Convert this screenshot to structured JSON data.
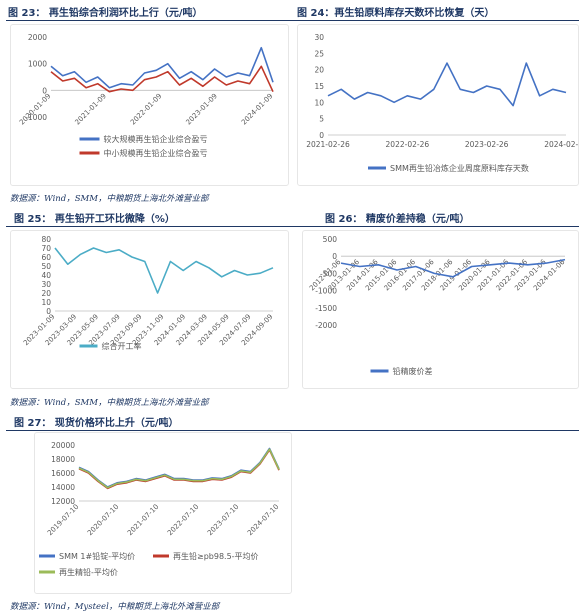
{
  "figures": [
    {
      "title": "图 23： 再生铅综合利润环比上行（元/吨）",
      "chart_data": {
        "type": "line",
        "title": "",
        "yticks": [
          "2000",
          "1000",
          "0",
          "-1000"
        ],
        "ylim": [
          -1000,
          2000
        ],
        "xticks": [
          "2020-01-09",
          "2021-01-09",
          "2022-01-09",
          "2023-01-09",
          "2024-01-09"
        ],
        "x": [
          "2020-01",
          "2020-04",
          "2020-07",
          "2020-10",
          "2021-01",
          "2021-04",
          "2021-07",
          "2021-10",
          "2022-01",
          "2022-04",
          "2022-07",
          "2022-10",
          "2023-01",
          "2023-04",
          "2023-07",
          "2023-10",
          "2024-01",
          "2024-04",
          "2024-07",
          "2024-10"
        ],
        "series": [
          {
            "name": "较大规模再生铅企业综合盈亏",
            "color": "#4472c4",
            "values": [
              900,
              550,
              700,
              300,
              500,
              100,
              250,
              200,
              650,
              750,
              1000,
              450,
              700,
              400,
              800,
              500,
              650,
              550,
              1600,
              300
            ]
          },
          {
            "name": "中小规模再生铅企业综合盈亏",
            "color": "#c0392b",
            "values": [
              700,
              350,
              450,
              100,
              250,
              -50,
              50,
              0,
              400,
              500,
              700,
              200,
              450,
              150,
              500,
              200,
              350,
              250,
              900,
              -50
            ]
          }
        ],
        "legend": "bottom"
      }
    },
    {
      "title": "图 24：再生铅原料库存天数环比恢复（天）",
      "chart_data": {
        "type": "line",
        "yticks": [
          "30",
          "25",
          "20",
          "15",
          "10",
          "5",
          "0"
        ],
        "ylim": [
          0,
          30
        ],
        "xticks": [
          "2021-02-26",
          "2022-02-26",
          "2023-02-26",
          "2024-02-26"
        ],
        "x": [
          "2021-02",
          "2021-05",
          "2021-08",
          "2021-11",
          "2022-02",
          "2022-05",
          "2022-08",
          "2022-11",
          "2023-01",
          "2023-02",
          "2023-04",
          "2023-07",
          "2023-10",
          "2024-01",
          "2024-03",
          "2024-04",
          "2024-06",
          "2024-08",
          "2024-10"
        ],
        "series": [
          {
            "name": "SMM再生铅冶炼企业周度原料库存天数",
            "color": "#4472c4",
            "values": [
              12,
              14,
              11,
              13,
              12,
              10,
              12,
              11,
              14,
              22,
              14,
              13,
              15,
              14,
              9,
              22,
              12,
              14,
              13
            ]
          }
        ],
        "legend": "bottom"
      }
    },
    {
      "title": "图 25： 再生铅开工环比微降（%）",
      "chart_data": {
        "type": "line",
        "yticks": [
          "80",
          "70",
          "60",
          "50",
          "40",
          "30",
          "20",
          "10",
          "0"
        ],
        "ylim": [
          0,
          80
        ],
        "xticks": [
          "2023-01-09",
          "2023-03-09",
          "2023-05-09",
          "2023-07-09",
          "2023-09-09",
          "2023-11-09",
          "2024-01-09",
          "2024-03-09",
          "2024-05-09",
          "2024-07-09",
          "2024-09-09"
        ],
        "x": [
          "2023-01",
          "2023-02",
          "2023-03",
          "2023-05",
          "2023-07",
          "2023-09",
          "2023-11",
          "2024-01",
          "2024-02",
          "2024-03",
          "2024-04",
          "2024-05",
          "2024-06",
          "2024-07",
          "2024-08",
          "2024-09",
          "2024-10",
          "2024-11"
        ],
        "series": [
          {
            "name": "综合开工率",
            "color": "#4bacc6",
            "values": [
              70,
              52,
              63,
              70,
              65,
              68,
              60,
              55,
              20,
              55,
              45,
              55,
              48,
              38,
              45,
              40,
              42,
              48
            ]
          }
        ],
        "legend": "bottom"
      }
    },
    {
      "title": "图 26： 精废价差持稳（元/吨）",
      "chart_data": {
        "type": "line",
        "yticks": [
          "500",
          "0",
          "-500",
          "-1000",
          "-1500",
          "-2000"
        ],
        "ylim": [
          -2000,
          500
        ],
        "xticks": [
          "2012-01-06",
          "2013-01-06",
          "2014-01-06",
          "2015-01-06",
          "2016-01-06",
          "2017-01-06",
          "2018-01-06",
          "2019-01-06",
          "2020-01-06",
          "2021-01-06",
          "2022-01-06",
          "2023-01-06",
          "2024-01-06"
        ],
        "x": [
          "2012",
          "2013",
          "2014",
          "2015",
          "2016",
          "2017",
          "2018",
          "2019",
          "2020",
          "2021",
          "2022",
          "2023",
          "2024"
        ],
        "series": [
          {
            "name": "铅精废价差",
            "color": "#4472c4",
            "values": [
              -200,
              -300,
              -250,
              -400,
              -300,
              -500,
              -600,
              -300,
              -250,
              -200,
              -250,
              -200,
              -100
            ]
          }
        ],
        "legend": "bottom"
      }
    },
    {
      "title": "图 27： 现货价格环比上升（元/吨）",
      "chart_data": {
        "type": "line",
        "yticks": [
          "20000",
          "18000",
          "16000",
          "14000",
          "12000"
        ],
        "ylim": [
          12000,
          20000
        ],
        "xticks": [
          "2019-07-10",
          "2020-07-10",
          "2021-07-10",
          "2022-07-10",
          "2023-07-10",
          "2024-07-10"
        ],
        "x": [
          "2019-07",
          "2019-10",
          "2020-01",
          "2020-04",
          "2020-07",
          "2020-10",
          "2021-01",
          "2021-04",
          "2021-07",
          "2021-10",
          "2022-01",
          "2022-04",
          "2022-07",
          "2022-10",
          "2023-01",
          "2023-04",
          "2023-07",
          "2023-10",
          "2024-01",
          "2024-04",
          "2024-07",
          "2024-10"
        ],
        "series": [
          {
            "name": "SMM 1#铅锭-平均价",
            "color": "#4472c4",
            "values": [
              16800,
              16200,
              15000,
              14000,
              14600,
              14800,
              15200,
              15000,
              15400,
              15800,
              15200,
              15200,
              15000,
              15000,
              15300,
              15200,
              15600,
              16400,
              16200,
              17500,
              19500,
              16600
            ]
          },
          {
            "name": "再生铅≥pb98.5-平均价",
            "color": "#c0392b",
            "values": [
              16600,
              16000,
              14800,
              13800,
              14400,
              14600,
              15000,
              14800,
              15200,
              15600,
              15000,
              15000,
              14800,
              14800,
              15100,
              15000,
              15400,
              16200,
              16000,
              17300,
              19300,
              16400
            ]
          },
          {
            "name": "再生精铅-平均价",
            "color": "#9bbb59",
            "values": [
              16700,
              16100,
              14900,
              13900,
              14500,
              14700,
              15100,
              14900,
              15300,
              15700,
              15100,
              15100,
              14900,
              14900,
              15200,
              15100,
              15500,
              16300,
              16100,
              17400,
              19400,
              16500
            ]
          }
        ],
        "legend": "bottom"
      }
    }
  ],
  "sources": {
    "row1": "数据源：Wind，SMM，中粮期货上海北外滩营业部",
    "row2": "数据源：Wind，SMM，中粮期货上海北外滩营业部",
    "row3": "数据源：Wind，Mysteel，中粮期货上海北外滩营业部"
  }
}
